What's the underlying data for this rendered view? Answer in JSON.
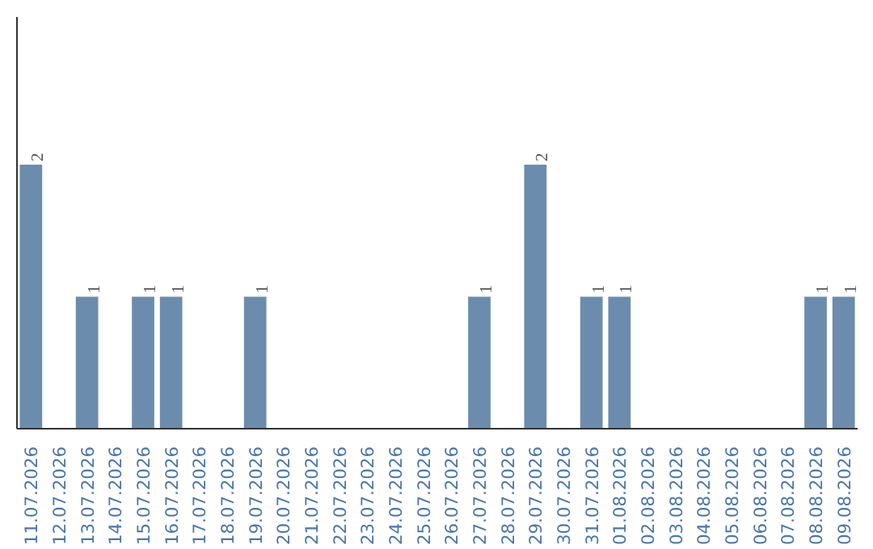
{
  "chart_data": {
    "type": "bar",
    "color": "#6b8cad",
    "categories": [
      "11.07.2026",
      "12.07.2026",
      "13.07.2026",
      "14.07.2026",
      "15.07.2026",
      "16.07.2026",
      "17.07.2026",
      "18.07.2026",
      "19.07.2026",
      "20.07.2026",
      "21.07.2026",
      "22.07.2026",
      "23.07.2026",
      "24.07.2026",
      "25.07.2026",
      "26.07.2026",
      "27.07.2026",
      "28.07.2026",
      "29.07.2026",
      "30.07.2026",
      "31.07.2026",
      "01.08.2026",
      "02.08.2026",
      "03.08.2026",
      "04.08.2026",
      "05.08.2026",
      "06.08.2026",
      "07.08.2026",
      "08.08.2026",
      "09.08.2026"
    ],
    "values": [
      2,
      0,
      1,
      0,
      1,
      1,
      0,
      0,
      1,
      0,
      0,
      0,
      0,
      0,
      0,
      0,
      1,
      0,
      2,
      0,
      1,
      1,
      0,
      0,
      0,
      0,
      0,
      0,
      1,
      1
    ],
    "value_labels": [
      "2",
      null,
      "1",
      null,
      "1",
      "1",
      null,
      null,
      "1",
      null,
      null,
      null,
      null,
      null,
      null,
      null,
      "1",
      null,
      "2",
      null,
      "1",
      "1",
      null,
      null,
      null,
      null,
      null,
      null,
      "1",
      "1"
    ],
    "grid": false,
    "tick_labels": "x"
  }
}
